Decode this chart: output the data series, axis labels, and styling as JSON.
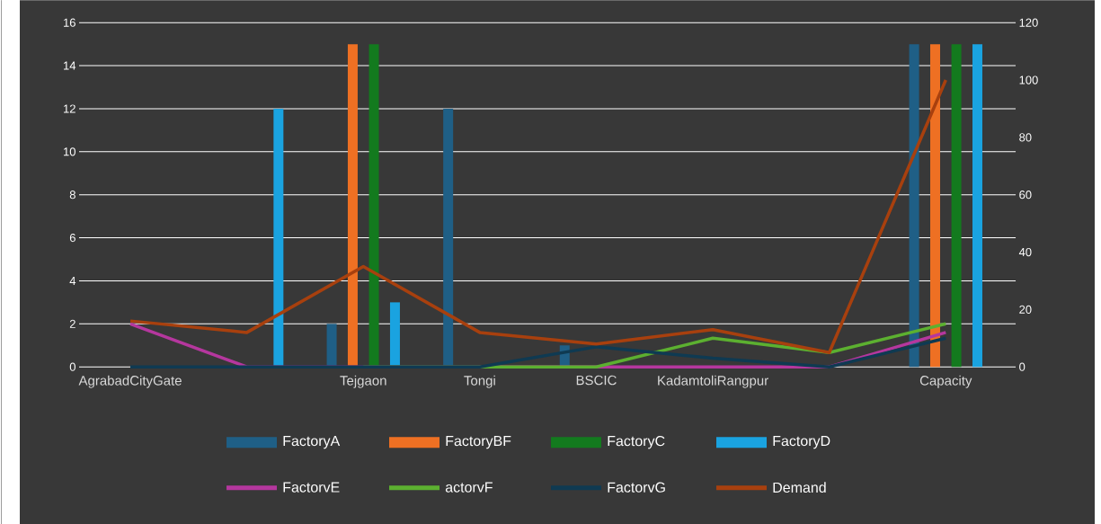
{
  "chart_data": {
    "type": "bar",
    "categories": [
      "AgrabadCityGate",
      null,
      "Tejgaon",
      "Tongi",
      "BSCIC",
      "KadamtoliRangpur",
      null,
      "Capacity"
    ],
    "series": [
      {
        "name": "FactoryA",
        "color": "#1f5f86",
        "values": [
          0,
          0,
          2,
          12,
          1,
          0,
          0,
          15
        ]
      },
      {
        "name": "FactoryBF",
        "color": "#ee7023",
        "values": [
          0,
          0,
          15,
          0,
          0,
          0,
          0,
          15
        ]
      },
      {
        "name": "FactoryC",
        "color": "#137a1e",
        "values": [
          0,
          0,
          15,
          0,
          0,
          0,
          0,
          15
        ]
      },
      {
        "name": "FactoryD",
        "color": "#1aa3e0",
        "values": [
          0,
          12,
          3,
          0,
          0,
          0,
          0,
          15
        ]
      },
      {
        "name": "FactorvE",
        "type": "line",
        "axis": "y2",
        "color": "#b5379e",
        "values": [
          15,
          0,
          0,
          0,
          0,
          0,
          0,
          12
        ]
      },
      {
        "name": "actorvF",
        "type": "line",
        "axis": "y2",
        "color": "#5cb030",
        "values": [
          null,
          null,
          0,
          0,
          0,
          10,
          5,
          15
        ]
      },
      {
        "name": "FactorvG",
        "type": "line",
        "axis": "y2",
        "color": "#0f3a52",
        "values": [
          0,
          0,
          0,
          0,
          7,
          3,
          0,
          10
        ]
      },
      {
        "name": "Demand",
        "type": "line",
        "axis": "y2",
        "color": "#a8400e",
        "values": [
          16,
          12,
          35,
          12,
          8,
          13,
          5,
          100
        ]
      }
    ],
    "ylim": [
      0,
      16
    ],
    "yticks": [
      0,
      2,
      4,
      6,
      8,
      10,
      12,
      14,
      16
    ],
    "y2lim": [
      0,
      120
    ],
    "y2ticks": [
      0,
      20,
      40,
      60,
      80,
      100,
      120
    ],
    "grid": "y",
    "legend": "bottom"
  }
}
